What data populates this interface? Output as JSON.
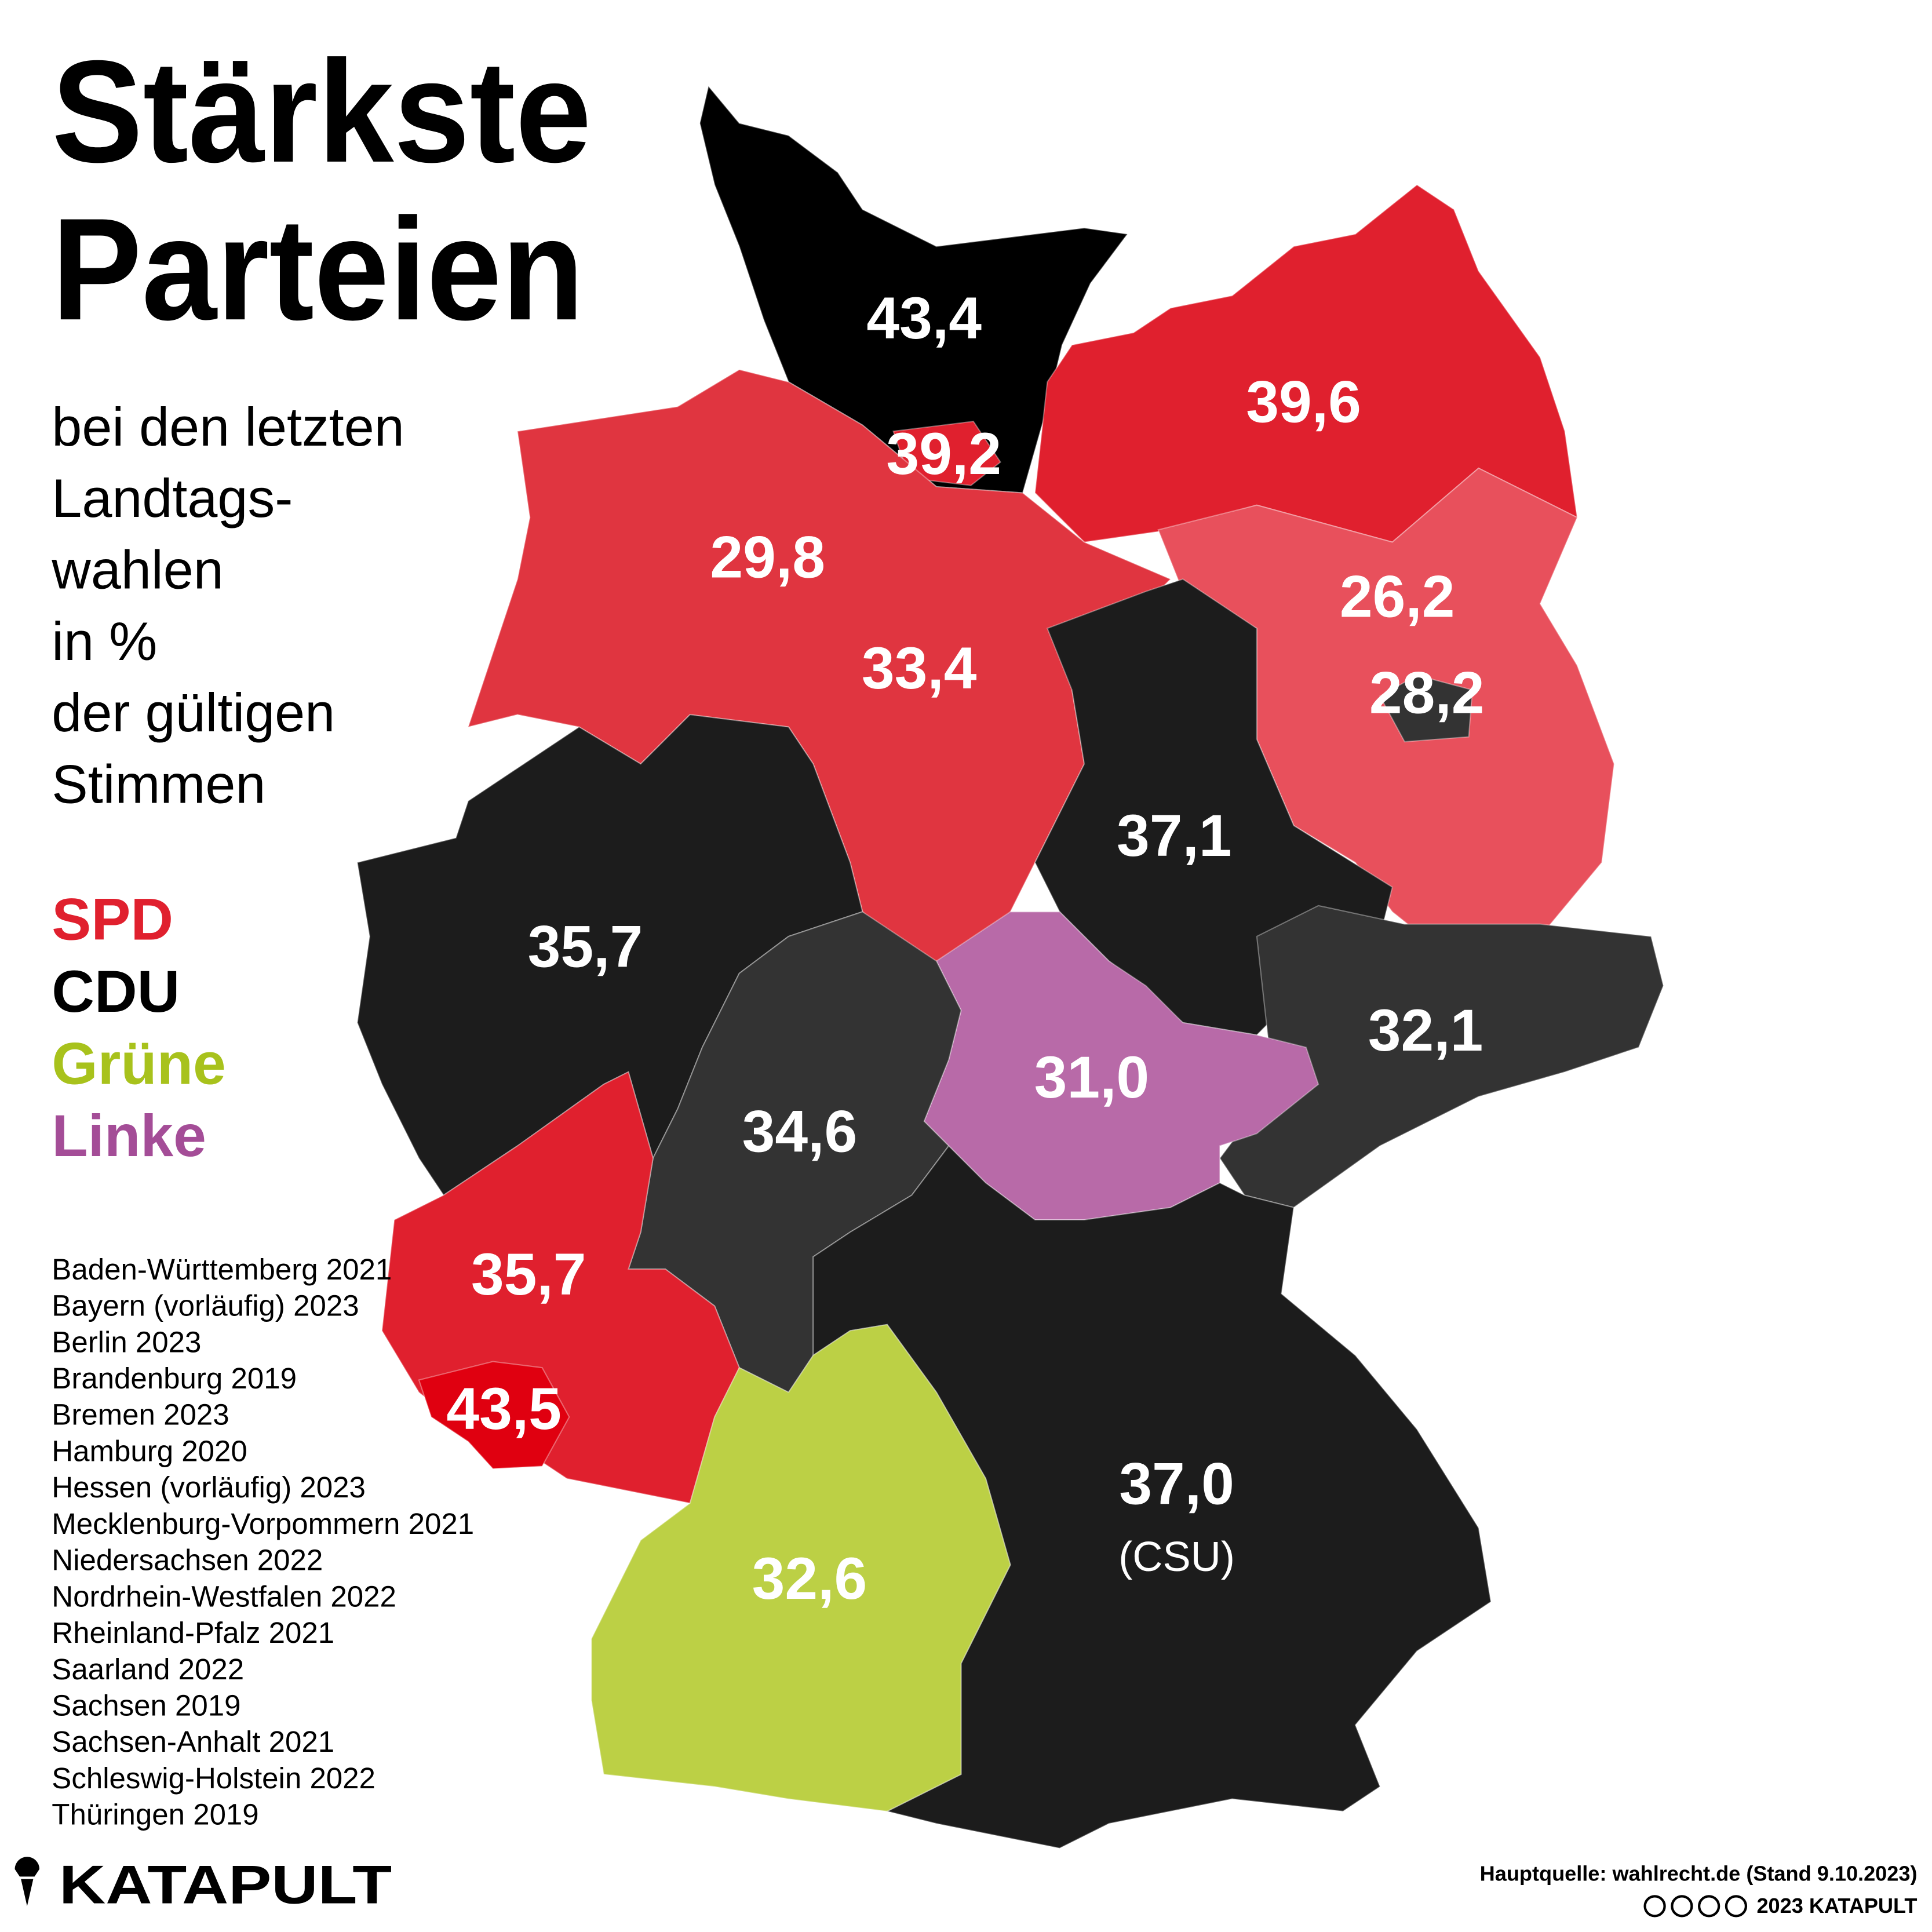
{
  "title": [
    "Stärkste",
    "Parteien"
  ],
  "subtitle": [
    "bei den letzten",
    "Landtags-",
    "wahlen",
    "in %",
    "der gültigen",
    "Stimmen"
  ],
  "legend": [
    {
      "name": "SPD",
      "color": "#e0202e"
    },
    {
      "name": "CDU",
      "color": "#000000"
    },
    {
      "name": "Grüne",
      "color": "#a8c21c"
    },
    {
      "name": "Linke",
      "color": "#a44d97"
    }
  ],
  "sources": [
    "Baden-Württemberg 2021",
    "Bayern (vorläufig) 2023",
    "Berlin 2023",
    "Brandenburg 2019",
    "Bremen 2023",
    "Hamburg 2020",
    "Hessen (vorläufig) 2023",
    "Mecklenburg-Vorpommern 2021",
    "Niedersachsen 2022",
    "Nordrhein-Westfalen 2022",
    "Rheinland-Pfalz 2021",
    "Saarland 2022",
    "Sachsen 2019",
    "Sachsen-Anhalt 2021",
    "Schleswig-Holstein 2022",
    "Thüringen 2019"
  ],
  "regions": [
    {
      "label": "43,4",
      "color": "#000000"
    },
    {
      "label": "39,6",
      "color": "#e0202e"
    },
    {
      "label": "39,2",
      "color": "#e0202e"
    },
    {
      "label": "29,8",
      "color": "#e03540"
    },
    {
      "label": "33,4",
      "color": "#e03540"
    },
    {
      "label": "26,2",
      "color": "#e8505c"
    },
    {
      "label": "28,2",
      "color": "#333333"
    },
    {
      "label": "37,1",
      "color": "#1c1c1c"
    },
    {
      "label": "35,7",
      "color": "#1c1c1c"
    },
    {
      "label": "32,1",
      "color": "#333333"
    },
    {
      "label": "31,0",
      "color": "#b86aa8"
    },
    {
      "label": "34,6",
      "color": "#333333"
    },
    {
      "label": "35,7",
      "color": "#e0202e"
    },
    {
      "label": "43,5",
      "color": "#e00010"
    },
    {
      "label": "37,0",
      "sublabel": "(CSU)",
      "color": "#1c1c1c"
    },
    {
      "label": "32,6",
      "color": "#bcd045"
    }
  ],
  "brand": "KATAPULT",
  "source_note": "Hauptquelle: wahlrecht.de (Stand 9.10.2023)",
  "copyright": "2023 KATAPULT"
}
